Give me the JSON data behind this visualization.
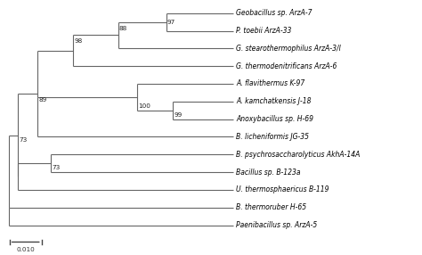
{
  "taxa": [
    "Geobacillus sp. ArzA-7",
    "P. toebii ArzA-33",
    "G. stearothermophilus ArzA-3/l",
    "G. thermodenitrificans ArzA-6",
    "A. flavithermus K-97",
    "A. kamchatkensis J-18",
    "Anoxybacillus sp. H-69",
    "B. licheniformis JG-35",
    "B. psychrosaccharolyticus AkhA-14A",
    "Bacillus sp. B-123a",
    "U. thermosphaericus B-119",
    "B. thermoruber H-65",
    "Paenibacillus sp. ArzA-5"
  ],
  "background_color": "#ffffff",
  "line_color": "#666666",
  "text_color": "#000000",
  "bootstrap_color": "#222222",
  "scale_bar_label": "0.010"
}
